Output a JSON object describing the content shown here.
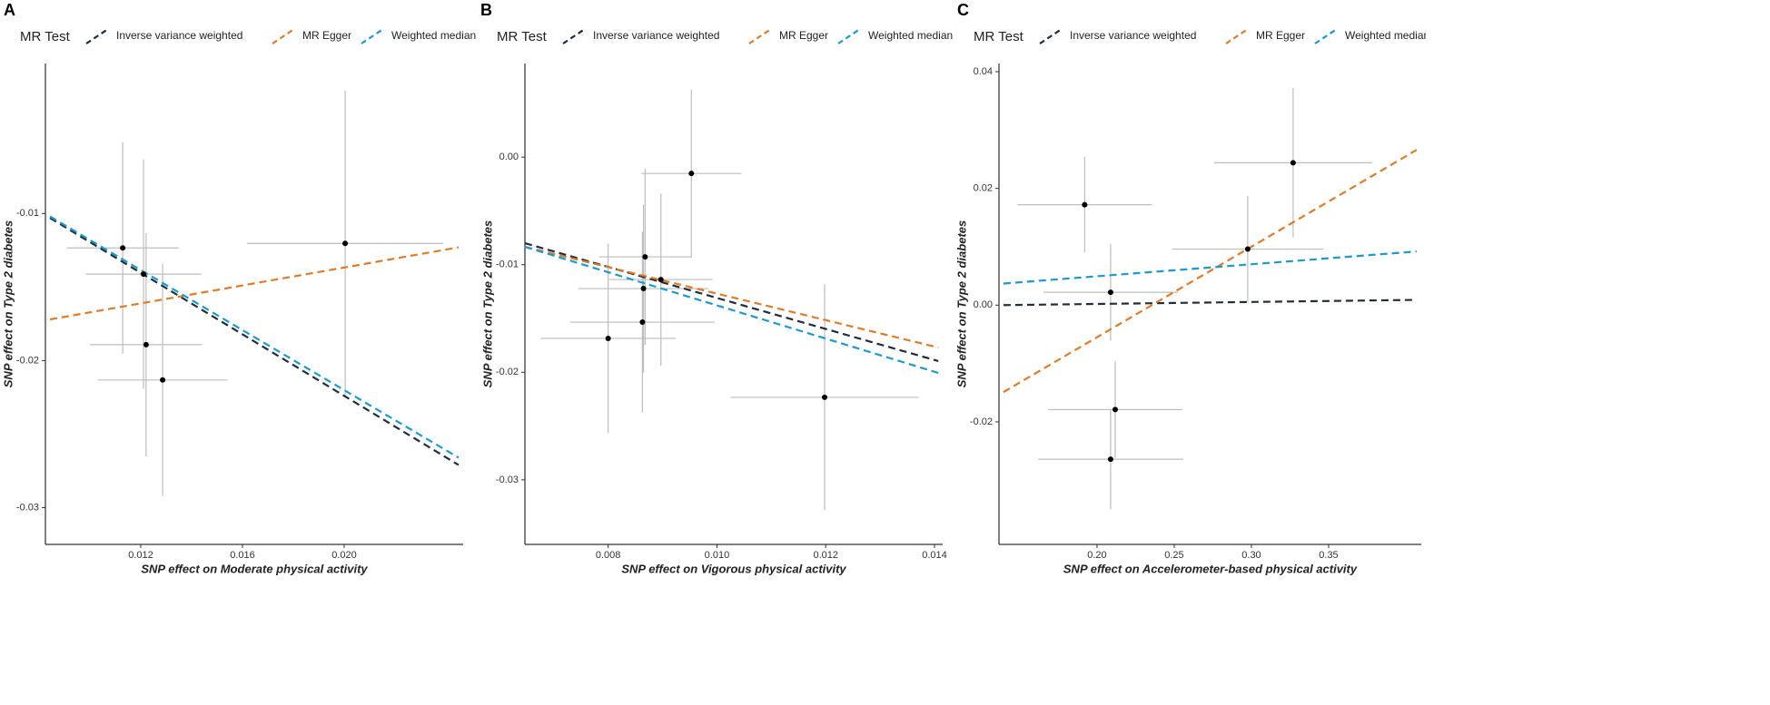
{
  "chart_data": [
    {
      "type": "scatter",
      "label": "A",
      "legend_title": "MR Test",
      "xlabel": "SNP effect on Moderate physical activity",
      "ylabel": "SNP effect on Type 2 diabetes",
      "xlim": [
        0.00825,
        0.02468
      ],
      "ylim": [
        -0.0325,
        0.0002
      ],
      "xticks": [
        0.012,
        0.016,
        {
          "value": 0.02,
          "label": "0.020"
        }
      ],
      "yticks": [
        -0.01,
        -0.02,
        -0.03
      ],
      "points": {
        "color": "#000000",
        "error_color": "#bdbdbd",
        "x": [
          0.01129,
          0.01211,
          0.01221,
          0.01286,
          0.02004
        ],
        "values": [
          -0.01234,
          -0.01412,
          -0.01892,
          -0.02132,
          -0.01203
        ],
        "xerr": [
          0.0022,
          0.00227,
          0.0022,
          0.00255,
          0.00386
        ],
        "yerr": [
          0.0072,
          0.0078,
          0.0076,
          0.0079,
          0.0104
        ]
      },
      "series": [
        {
          "name": "Inverse variance weighted",
          "color": "#1f2d3d",
          "x": [
            0.00843,
            0.0245
          ],
          "values": [
            -0.0103,
            -0.0271
          ]
        },
        {
          "name": "MR Egger",
          "color": "#e07b2a",
          "x": [
            0.00843,
            0.0245
          ],
          "values": [
            -0.0172,
            -0.0123
          ]
        },
        {
          "name": "Weighted median",
          "color": "#1b9ad0",
          "x": [
            0.00843,
            0.0245
          ],
          "values": [
            -0.0102,
            -0.0266
          ]
        }
      ]
    },
    {
      "type": "scatter",
      "label": "B",
      "legend_title": "MR Test",
      "xlabel": "SNP effect on Vigorous physical activity",
      "ylabel": "SNP effect on Type 2 diabetes",
      "xlim": [
        0.00647,
        0.01415
      ],
      "ylim": [
        -0.036,
        0.0087
      ],
      "xticks": [
        0.008,
        {
          "value": 0.01,
          "label": "0.010"
        },
        0.012,
        0.014
      ],
      "yticks": [
        {
          "value": 0,
          "label": "0.00"
        },
        -0.01,
        -0.02,
        -0.03
      ],
      "points": {
        "color": "#000000",
        "error_color": "#bdbdbd",
        "x": [
          0.00953,
          0.00868,
          0.00897,
          0.00865,
          0.00863,
          0.008,
          0.01198
        ],
        "values": [
          -0.00152,
          -0.00927,
          -0.01138,
          -0.01222,
          -0.01534,
          -0.01685,
          -0.02233
        ],
        "xerr": [
          0.00092,
          0.00085,
          0.00095,
          0.0012,
          0.00133,
          0.00124,
          0.00173
        ],
        "yerr": [
          0.0078,
          0.0082,
          0.008,
          0.0078,
          0.0084,
          0.0088,
          0.0105
        ]
      },
      "series": [
        {
          "name": "Inverse variance weighted",
          "color": "#1f2d3d",
          "x": [
            0.00647,
            0.01407
          ],
          "values": [
            -0.008,
            -0.01896
          ]
        },
        {
          "name": "MR Egger",
          "color": "#e07b2a",
          "x": [
            0.00647,
            0.01407
          ],
          "values": [
            -0.00834,
            -0.0177
          ]
        },
        {
          "name": "Weighted median",
          "color": "#1b9ad0",
          "x": [
            0.00647,
            0.01407
          ],
          "values": [
            -0.00834,
            -0.02006
          ]
        }
      ]
    },
    {
      "type": "scatter",
      "label": "C",
      "legend_title": "MR Test",
      "xlabel": "SNP effect on Accelerometer-based physical activity",
      "ylabel": "SNP effect on Type 2 diabetes",
      "xlim": [
        0.1365,
        0.41
      ],
      "ylim": [
        -0.041,
        0.0414
      ],
      "xticks": [
        {
          "value": 0.2,
          "label": "0.20"
        },
        0.25,
        {
          "value": 0.3,
          "label": "0.30"
        },
        0.35
      ],
      "yticks": [
        0.04,
        0.02,
        {
          "value": 0,
          "label": "0.00"
        },
        -0.02
      ],
      "points": {
        "color": "#000000",
        "error_color": "#bdbdbd",
        "x": [
          0.192,
          0.2088,
          0.2118,
          0.2088,
          0.2976,
          0.327
        ],
        "values": [
          0.0172,
          0.0022,
          -0.0179,
          -0.0264,
          0.0096,
          0.0244
        ],
        "xerr": [
          0.0435,
          0.0435,
          0.0435,
          0.047,
          0.049,
          0.051
        ],
        "yerr": [
          0.0082,
          0.0083,
          0.0083,
          0.0086,
          0.0091,
          0.0128
        ]
      },
      "series": [
        {
          "name": "Inverse variance weighted",
          "color": "#1f2d3d",
          "x": [
            0.1394,
            0.407
          ],
          "values": [
            0,
            0.0009
          ]
        },
        {
          "name": "MR Egger",
          "color": "#e07b2a",
          "x": [
            0.1394,
            0.407
          ],
          "values": [
            -0.0149,
            0.0266
          ]
        },
        {
          "name": "Weighted median",
          "color": "#1b9ad0",
          "x": [
            0.1394,
            0.407
          ],
          "values": [
            0.0037,
            0.0092
          ]
        }
      ]
    }
  ]
}
